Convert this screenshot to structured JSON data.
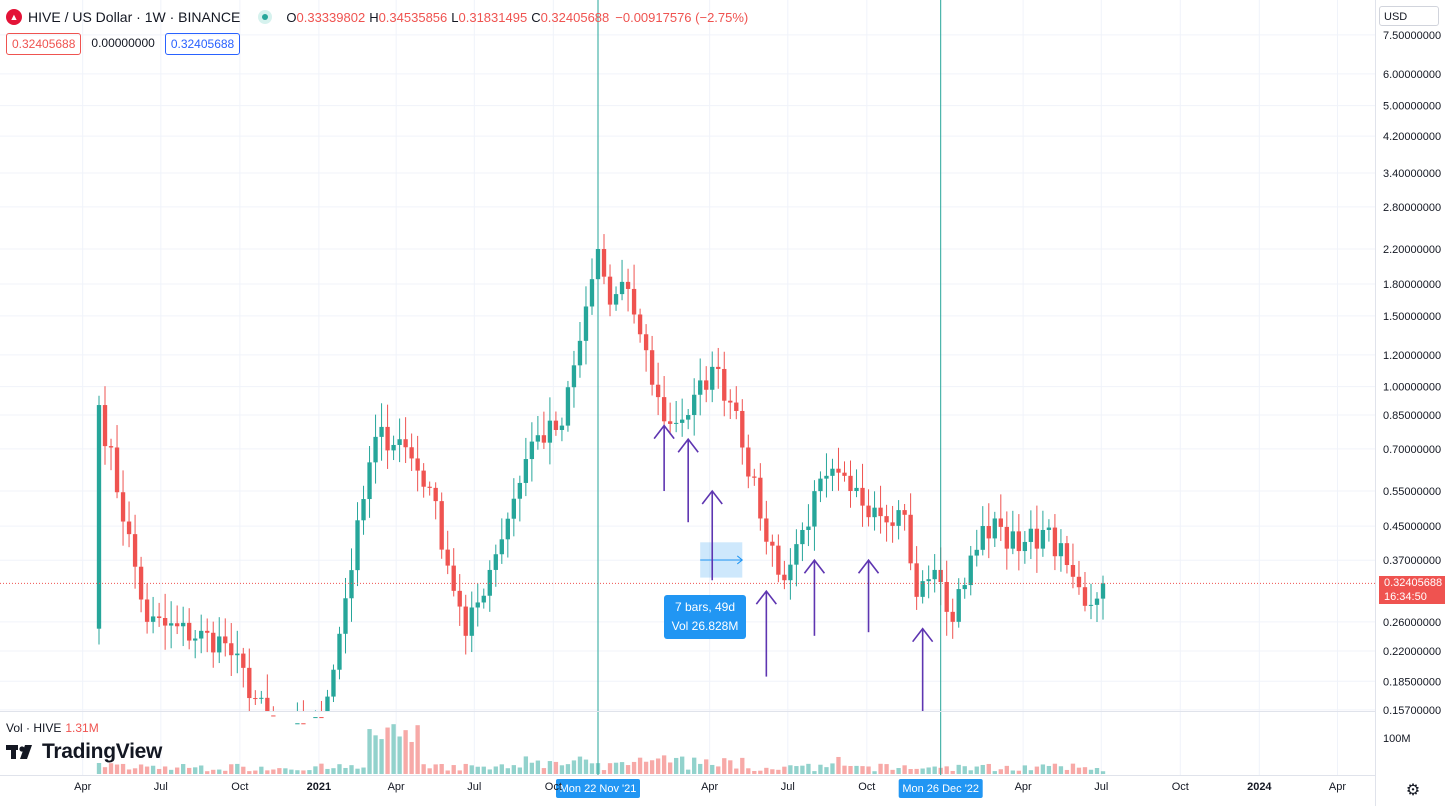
{
  "header": {
    "symbol_title": "HIVE / US Dollar · 1W · BINANCE",
    "ohlc": {
      "o_label": "O",
      "o_value": "0.33339802",
      "h_label": "H",
      "h_value": "0.34535856",
      "l_label": "L",
      "l_value": "0.31831495",
      "c_label": "C",
      "c_value": "0.32405688",
      "change": "−0.00917576 (−2.75%)"
    },
    "price_boxes": {
      "bid": "0.32405688",
      "spread": "0.00000000",
      "ask": "0.32405688"
    }
  },
  "currency": "USD",
  "volume_legend": {
    "label": "Vol · HIVE",
    "value": "1.31M"
  },
  "watermark": "TradingView",
  "last_price": {
    "price": "0.32405688",
    "countdown": "16:34:50"
  },
  "measure_tooltip": {
    "bars": "7 bars, 49d",
    "volume": "Vol 26.828M"
  },
  "crosshair_dates": [
    "Mon 22 Nov '21",
    "Mon 26 Dec '22"
  ],
  "colors": {
    "up": "#26a69a",
    "down": "#ef5350",
    "arrow": "#5e35b1",
    "accent": "#2196f3"
  },
  "icons": {
    "settings": "gear-icon",
    "symbol_logo": "hive-logo-icon",
    "status": "market-open-dot-icon"
  },
  "chart_data": {
    "type": "candlestick",
    "scale": "log",
    "y_ticks": [
      "7.50000000",
      "6.00000000",
      "5.00000000",
      "4.20000000",
      "3.40000000",
      "2.80000000",
      "2.20000000",
      "1.80000000",
      "1.50000000",
      "1.20000000",
      "1.00000000",
      "0.85000000",
      "0.70000000",
      "0.55000000",
      "0.45000000",
      "0.37000000",
      "0.26000000",
      "0.22000000",
      "0.18500000",
      "0.15700000"
    ],
    "x_ticks": [
      "Apr",
      "Jul",
      "Oct",
      "2021",
      "Apr",
      "Jul",
      "Oct",
      "Apr",
      "Jul",
      "Oct",
      "Apr",
      "Jul",
      "Oct",
      "2024",
      "Apr"
    ],
    "volume_tick": "100M",
    "grid": true,
    "anchors": [
      {
        "date": "2020-04-20",
        "price": 0.9
      },
      {
        "date": "2020-06-15",
        "price": 0.26
      },
      {
        "date": "2020-09-14",
        "price": 0.23
      },
      {
        "date": "2020-11-16",
        "price": 0.13
      },
      {
        "date": "2021-01-04",
        "price": 0.145
      },
      {
        "date": "2021-03-08",
        "price": 0.75
      },
      {
        "date": "2021-04-05",
        "price": 0.74
      },
      {
        "date": "2021-05-10",
        "price": 0.56
      },
      {
        "date": "2021-06-21",
        "price": 0.24
      },
      {
        "date": "2021-07-19",
        "price": 0.35
      },
      {
        "date": "2021-09-06",
        "price": 0.73
      },
      {
        "date": "2021-10-11",
        "price": 0.8
      },
      {
        "date": "2021-11-01",
        "price": 1.3
      },
      {
        "date": "2021-11-22",
        "price": 2.2
      },
      {
        "date": "2021-12-06",
        "price": 1.6
      },
      {
        "date": "2021-12-27",
        "price": 1.75
      },
      {
        "date": "2022-01-10",
        "price": 1.35
      },
      {
        "date": "2022-02-07",
        "price": 0.82
      },
      {
        "date": "2022-03-07",
        "price": 0.85
      },
      {
        "date": "2022-04-04",
        "price": 1.12
      },
      {
        "date": "2022-05-02",
        "price": 0.87
      },
      {
        "date": "2022-05-30",
        "price": 0.47
      },
      {
        "date": "2022-06-27",
        "price": 0.33
      },
      {
        "date": "2022-07-18",
        "price": 0.44
      },
      {
        "date": "2022-08-15",
        "price": 0.6
      },
      {
        "date": "2022-09-12",
        "price": 0.55
      },
      {
        "date": "2022-10-10",
        "price": 0.5
      },
      {
        "date": "2022-11-14",
        "price": 0.48
      },
      {
        "date": "2022-11-28",
        "price": 0.3
      },
      {
        "date": "2022-12-19",
        "price": 0.35
      },
      {
        "date": "2023-01-09",
        "price": 0.26
      },
      {
        "date": "2023-01-30",
        "price": 0.38
      },
      {
        "date": "2023-02-27",
        "price": 0.47
      },
      {
        "date": "2023-03-27",
        "price": 0.39
      },
      {
        "date": "2023-04-24",
        "price": 0.44
      },
      {
        "date": "2023-05-22",
        "price": 0.36
      },
      {
        "date": "2023-06-12",
        "price": 0.285
      },
      {
        "date": "2023-07-03",
        "price": 0.324
      }
    ],
    "arrows": [
      {
        "date": "2022-02-07",
        "from": 0.55,
        "to": 0.8
      },
      {
        "date": "2022-03-07",
        "from": 0.46,
        "to": 0.74
      },
      {
        "date": "2022-04-04",
        "from": 0.33,
        "to": 0.55
      },
      {
        "date": "2022-06-06",
        "from": 0.19,
        "to": 0.31
      },
      {
        "date": "2022-08-01",
        "from": 0.24,
        "to": 0.37
      },
      {
        "date": "2022-10-03",
        "from": 0.245,
        "to": 0.37
      },
      {
        "date": "2022-12-05",
        "from": 0.156,
        "to": 0.25
      }
    ],
    "measure_range": {
      "from": "2022-03-21",
      "to": "2022-05-09",
      "low": 0.335,
      "high": 0.41
    }
  }
}
